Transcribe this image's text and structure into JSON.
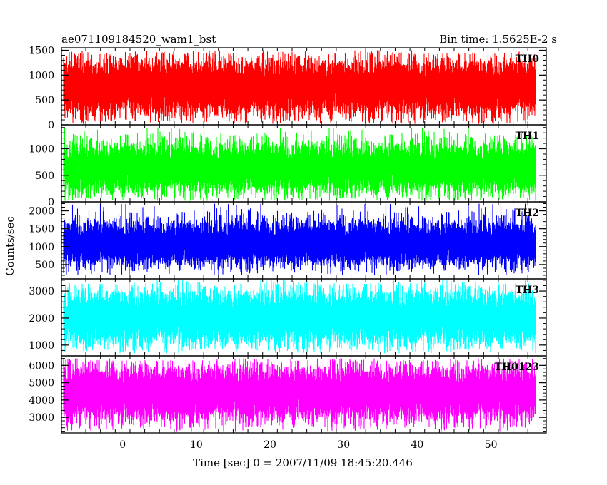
{
  "chart_data": {
    "type": "line",
    "title": "ae071109184520_wam1_bst",
    "subtitle": "Bin time: 1.5625E-2 s",
    "xlabel": "Time [sec] 0 = 2007/11/09 18:45:20.446",
    "ylabel": "Counts/sec",
    "xlim": [
      -8.3,
      57.5
    ],
    "xticks": [
      0,
      10,
      20,
      30,
      40,
      50
    ],
    "x_range_data": [
      -8,
      56
    ],
    "grid": false,
    "panels": [
      {
        "name": "TH0",
        "color": "#ff0000",
        "ylim": [
          0,
          1550
        ],
        "yticks": [
          0,
          500,
          1000,
          1500
        ],
        "center": 760,
        "typical_range": [
          120,
          1400
        ],
        "peak_max": 1500,
        "min": 20
      },
      {
        "name": "TH1",
        "color": "#00ff00",
        "ylim": [
          0,
          1450
        ],
        "yticks": [
          0,
          500,
          1000
        ],
        "center": 620,
        "typical_range": [
          100,
          1200
        ],
        "peak_max": 1400,
        "min": 20
      },
      {
        "name": "TH2",
        "color": "#0000ff",
        "ylim": [
          100,
          2250
        ],
        "yticks": [
          500,
          1000,
          1500,
          2000
        ],
        "center": 1050,
        "typical_range": [
          400,
          1850
        ],
        "peak_max": 2200,
        "min": 200
      },
      {
        "name": "TH3",
        "color": "#00ffff",
        "ylim": [
          600,
          3450
        ],
        "yticks": [
          1000,
          2000,
          3000
        ],
        "center": 2000,
        "typical_range": [
          900,
          3200
        ],
        "peak_max": 3400,
        "min": 700
      },
      {
        "name": "TH0123",
        "color": "#ff00ff",
        "ylim": [
          2100,
          6550
        ],
        "yticks": [
          3000,
          4000,
          5000,
          6000
        ],
        "center": 4400,
        "typical_range": [
          2600,
          6200
        ],
        "peak_max": 6400,
        "min": 2200
      }
    ]
  }
}
